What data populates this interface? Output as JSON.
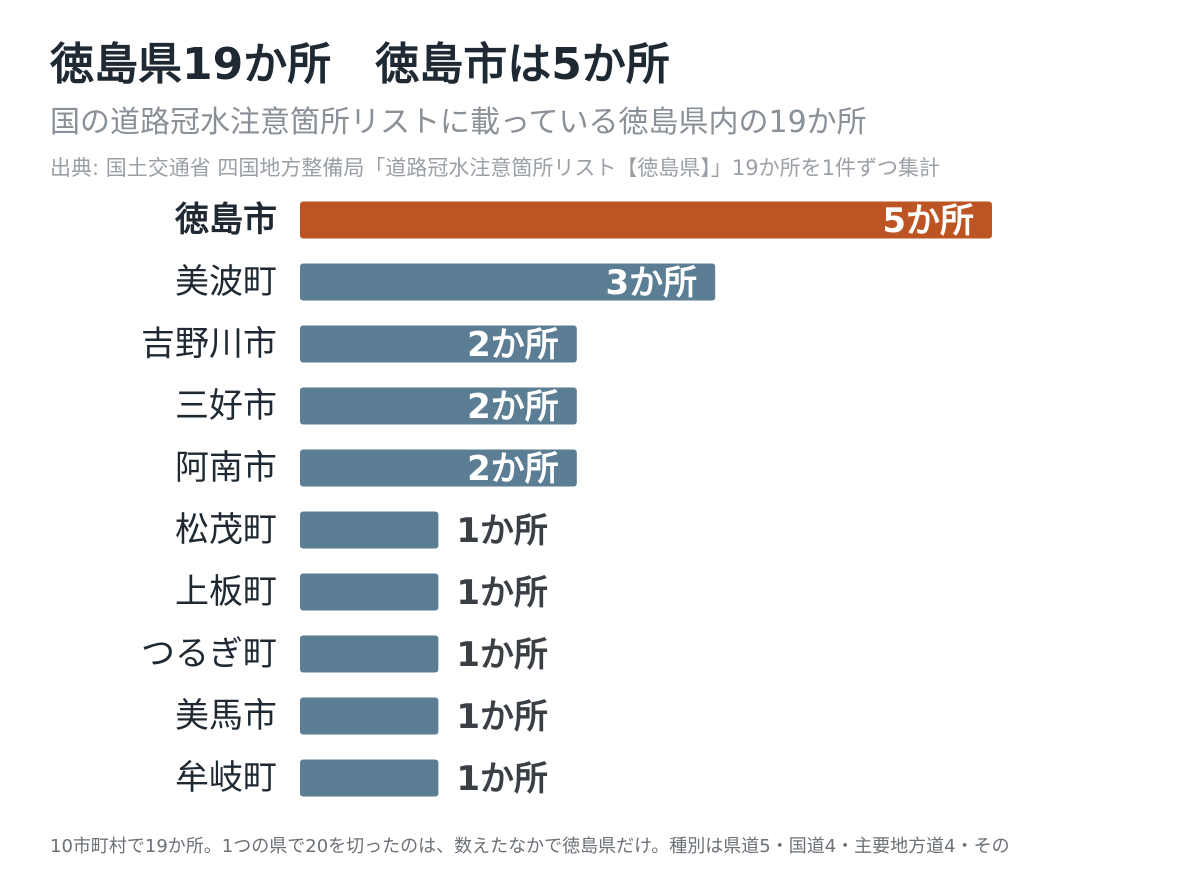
{
  "title": "徳島県19か所　徳島市は5か所",
  "subtitle": "国の道路冠水注意箇所リストに載っている徳島県内の19か所",
  "source": "出典: 国土交通省 四国地方整備局「道路冠水注意箇所リスト【徳島県】」19か所を1件ずつ集計",
  "footnote": "10市町村で19か所。1つの県で20を切ったのは、数えたなかで徳島県だけ。種別は県道5・国道4・主要地方道4・その",
  "colors": {
    "highlight": "#bd5423",
    "bar": "#5b7e94",
    "label_inside": "#ffffff",
    "label_outside": "#3a3f45",
    "category_text": "#1f2933"
  },
  "chart_data": {
    "type": "bar",
    "orientation": "horizontal",
    "categories": [
      "徳島市",
      "美波町",
      "吉野川市",
      "三好市",
      "阿南市",
      "松茂町",
      "上板町",
      "つるぎ町",
      "美馬市",
      "牟岐町"
    ],
    "values": [
      5,
      3,
      2,
      2,
      2,
      1,
      1,
      1,
      1,
      1
    ],
    "value_labels": [
      "5か所",
      "3か所",
      "2か所",
      "2か所",
      "2か所",
      "1か所",
      "1か所",
      "1か所",
      "1か所",
      "1か所"
    ],
    "highlight": [
      "徳島市"
    ],
    "xlim": [
      0,
      5
    ],
    "grid": false,
    "legend": "none"
  }
}
